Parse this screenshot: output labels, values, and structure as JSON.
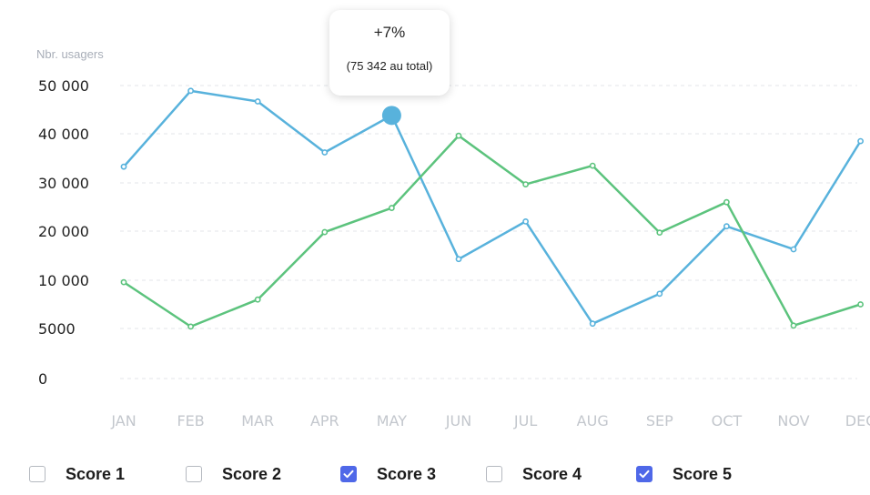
{
  "chart_data": {
    "type": "line",
    "ylabel": "Nbr. usagers",
    "categories": [
      "JAN",
      "FEB",
      "MAR",
      "APR",
      "MAY",
      "JUN",
      "JUL",
      "AUG",
      "SEP",
      "OCT",
      "NOV",
      "DEC"
    ],
    "y_ticks": [
      {
        "value": 0,
        "label": "0"
      },
      {
        "value": 5000,
        "label": "5000"
      },
      {
        "value": 10000,
        "label": "10 000"
      },
      {
        "value": 20000,
        "label": "20 000"
      },
      {
        "value": 30000,
        "label": "30 000"
      },
      {
        "value": 40000,
        "label": "40 000"
      },
      {
        "value": 50000,
        "label": "50 000"
      }
    ],
    "ylim": [
      0,
      50000
    ],
    "grid": true,
    "series": [
      {
        "name": "Score 3",
        "color": "#58b2dc",
        "values": [
          33300,
          48900,
          46700,
          36200,
          43800,
          14300,
          22000,
          5500,
          8600,
          21000,
          16300,
          38500
        ]
      },
      {
        "name": "Score 5",
        "color": "#5cc37d",
        "values": [
          9800,
          5200,
          8000,
          19800,
          24800,
          39600,
          29700,
          33500,
          19700,
          26000,
          5300,
          7500
        ]
      }
    ],
    "highlight": {
      "series": "Score 3",
      "category": "MAY"
    },
    "tooltip": {
      "main": "+7%",
      "sub": "(75 342 au total)"
    }
  },
  "legend": [
    {
      "label": "Score 1",
      "checked": false
    },
    {
      "label": "Score 2",
      "checked": false
    },
    {
      "label": "Score 3",
      "checked": true
    },
    {
      "label": "Score 4",
      "checked": false
    },
    {
      "label": "Score 5",
      "checked": true
    }
  ],
  "colors": {
    "grid": "#e3e5e9",
    "tick_x": "#c3c7cd",
    "tick_y": "#222222",
    "checkbox_on": "#4f68e8"
  }
}
